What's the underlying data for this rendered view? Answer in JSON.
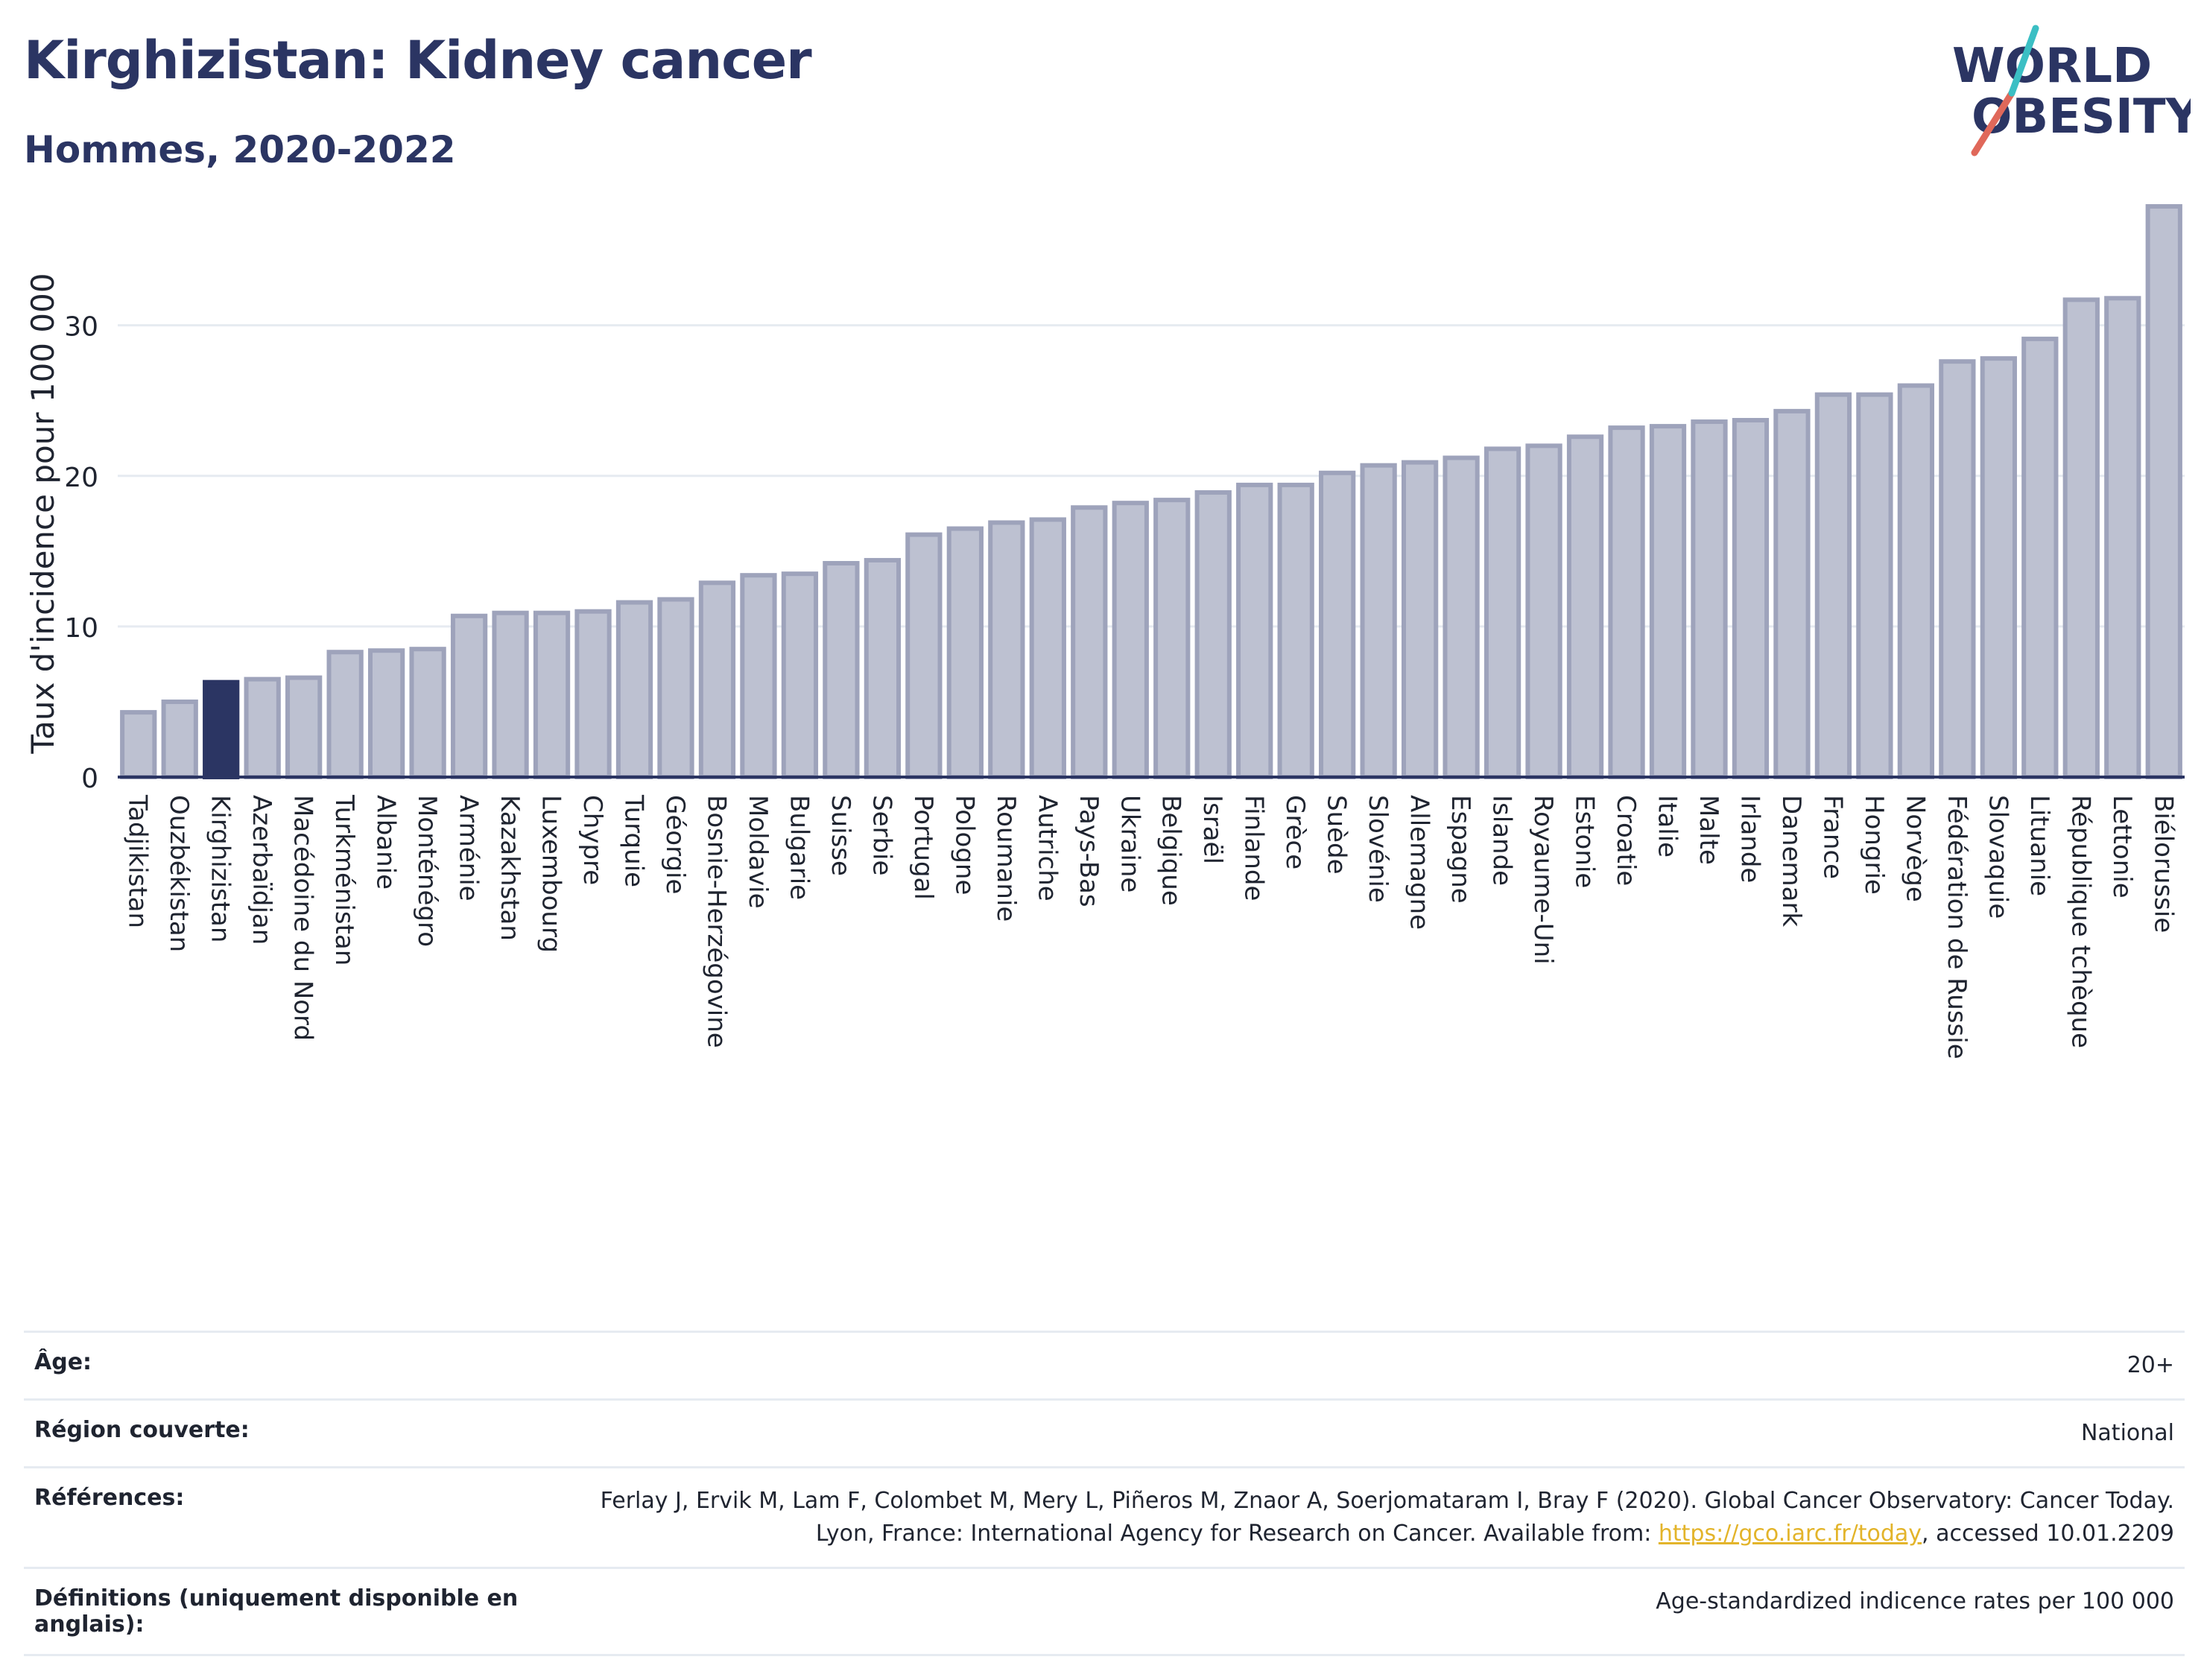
{
  "header": {
    "title": "Kirghizistan: Kidney cancer",
    "subtitle": "Hommes, 2020-2022"
  },
  "logo": {
    "line1": "WORLD",
    "line2": "OBESITY",
    "colors": {
      "text": "#2b3563",
      "slash_red": "#e0685a",
      "slash_teal": "#3bbfc4"
    }
  },
  "colors": {
    "bar": "#bdc1d1",
    "bar_stroke": "#9ea3bb",
    "highlight": "#2b3563",
    "grid": "#e6ebf1",
    "axis": "#2b3563"
  },
  "chart_data": {
    "type": "bar",
    "ylabel": "Taux d'incidence pour 100 000",
    "ylim": [
      0,
      38
    ],
    "yticks": [
      0,
      10,
      20,
      30
    ],
    "grid": true,
    "highlight_category": "Kirghizistan",
    "categories": [
      "Tadjikistan",
      "Ouzbékistan",
      "Kirghizistan",
      "Azerbaïdjan",
      "Macédoine du Nord",
      "Turkménistan",
      "Albanie",
      "Monténégro",
      "Arménie",
      "Kazakhstan",
      "Luxembourg",
      "Chypre",
      "Turquie",
      "Géorgie",
      "Bosnie-Herzégovine",
      "Moldavie",
      "Bulgarie",
      "Suisse",
      "Serbie",
      "Portugal",
      "Pologne",
      "Roumanie",
      "Autriche",
      "Pays-Bas",
      "Ukraine",
      "Belgique",
      "Israël",
      "Finlande",
      "Grèce",
      "Suède",
      "Slovénie",
      "Allemagne",
      "Espagne",
      "Islande",
      "Royaume-Uni",
      "Estonie",
      "Croatie",
      "Italie",
      "Malte",
      "Irlande",
      "Danemark",
      "France",
      "Hongrie",
      "Norvège",
      "Fédération de Russie",
      "Slovaquie",
      "Lituanie",
      "République tchèque",
      "Lettonie",
      "Biélorussie"
    ],
    "values": [
      4.3,
      5.0,
      6.3,
      6.5,
      6.6,
      8.3,
      8.4,
      8.5,
      10.7,
      10.9,
      10.9,
      11.0,
      11.6,
      11.8,
      12.9,
      13.4,
      13.5,
      14.2,
      14.4,
      16.1,
      16.5,
      16.9,
      17.1,
      17.9,
      18.2,
      18.4,
      18.9,
      19.4,
      19.4,
      20.2,
      20.7,
      20.9,
      21.2,
      21.8,
      22.0,
      22.6,
      23.2,
      23.3,
      23.6,
      23.7,
      24.3,
      25.4,
      25.4,
      26.0,
      27.6,
      27.8,
      29.1,
      31.7,
      31.8,
      37.9
    ]
  },
  "meta": {
    "age_label": "Âge:",
    "age_value": "20+",
    "region_label": "Région couverte:",
    "region_value": "National",
    "references_label": "Références:",
    "references_text": "Ferlay J, Ervik M, Lam F, Colombet M, Mery L, Piñeros M, Znaor A, Soerjomataram I, Bray F (2020). Global Cancer Observatory: Cancer Today. Lyon, France: International Agency for Research on Cancer. Available from: ",
    "references_link": "https://gco.iarc.fr/today",
    "references_suffix": ", accessed 10.01.2209",
    "definitions_label": "Définitions (uniquement disponible en anglais):",
    "definitions_value": "Age-standardized indicence rates per 100 000"
  }
}
